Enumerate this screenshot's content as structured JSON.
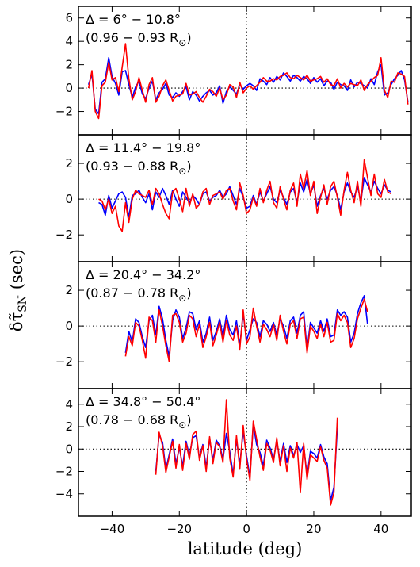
{
  "figure": {
    "xlabel": "latitude (deg)",
    "ylabel": "δτ̃",
    "ylabel_sub": "SN",
    "ylabel_unit": " (sec)"
  },
  "colors": {
    "series_a": "#0000ff",
    "series_b": "#ff0000",
    "axes": "#000000"
  },
  "chart_data": [
    {
      "type": "line",
      "label_line1": "Δ = 6° − 10.8°",
      "label_line2": "(0.96 − 0.93 R",
      "label_sub": "⊙",
      "label_close": ")",
      "xlim": [
        -50,
        49
      ],
      "ylim": [
        -4,
        7
      ],
      "xticks": [
        -40,
        -20,
        0,
        20,
        40
      ],
      "yticks": [
        -2,
        0,
        2,
        4,
        6
      ],
      "ytick_labels": [
        "−2",
        "0",
        "2",
        "4",
        "6"
      ],
      "reference_lines": {
        "y": 0,
        "x": 0,
        "style": "dotted"
      },
      "x_range": [
        -47,
        48
      ],
      "x_step": 1,
      "series": [
        {
          "color": "#0000ff",
          "values": [
            0.3,
            1.2,
            -1.8,
            -2.2,
            0.5,
            0.8,
            2.6,
            1.0,
            0.4,
            -0.6,
            1.4,
            1.5,
            0.3,
            -0.8,
            0.1,
            0.6,
            -0.5,
            -0.9,
            0.0,
            0.6,
            -1.0,
            -0.4,
            -0.1,
            0.4,
            -0.6,
            -0.8,
            -0.4,
            -0.7,
            -0.3,
            0.1,
            -1.0,
            -0.3,
            -0.6,
            -1.1,
            -0.7,
            -0.4,
            -0.2,
            -0.6,
            -0.4,
            0.2,
            -1.3,
            -0.3,
            0.1,
            -0.2,
            -0.5,
            0.3,
            -0.1,
            0.2,
            0.4,
            0.2,
            -0.2,
            0.8,
            0.6,
            0.3,
            0.9,
            0.5,
            1.0,
            0.7,
            1.3,
            1.0,
            0.6,
            1.1,
            0.9,
            0.6,
            1.0,
            0.8,
            0.4,
            0.9,
            0.5,
            0.8,
            0.2,
            0.6,
            0.5,
            -0.1,
            0.5,
            0.3,
            0.2,
            -0.2,
            0.7,
            0.1,
            0.5,
            0.4,
            0.2,
            0.0,
            0.8,
            0.3,
            1.4,
            2.0,
            -0.6,
            -0.4,
            0.3,
            0.8,
            1.1,
            1.5,
            0.7,
            -1.2
          ]
        },
        {
          "color": "#ff0000",
          "values": [
            0.0,
            1.5,
            -2.0,
            -2.6,
            0.2,
            0.5,
            2.2,
            0.7,
            0.9,
            -0.3,
            1.8,
            3.8,
            0.8,
            -1.0,
            -0.3,
            0.9,
            -0.2,
            -1.2,
            0.3,
            0.9,
            -1.2,
            -0.7,
            0.2,
            0.7,
            -0.2,
            -1.1,
            -0.7,
            -0.6,
            -0.5,
            0.4,
            -0.6,
            -0.5,
            -0.3,
            -0.8,
            -1.2,
            -0.7,
            -0.1,
            -0.3,
            -0.7,
            0.0,
            -1.0,
            -0.6,
            0.3,
            0.1,
            -0.8,
            0.5,
            -0.4,
            0.0,
            0.2,
            -0.1,
            0.2,
            0.5,
            0.9,
            0.6,
            0.6,
            0.8,
            0.7,
            1.0,
            1.1,
            1.3,
            0.9,
            0.8,
            1.1,
            0.9,
            0.7,
            1.1,
            0.6,
            0.7,
            0.8,
            1.0,
            0.5,
            0.8,
            0.3,
            0.2,
            0.8,
            0.0,
            0.4,
            0.1,
            0.4,
            0.3,
            0.2,
            0.7,
            -0.2,
            0.3,
            0.6,
            0.9,
            1.1,
            2.6,
            -0.2,
            -0.8,
            0.6,
            0.5,
            1.3,
            1.2,
            1.0,
            -1.4
          ]
        }
      ]
    },
    {
      "type": "line",
      "label_line1": "Δ = 11.4° − 19.8°",
      "label_line2": "(0.93 − 0.88 R",
      "label_sub": "⊙",
      "label_close": ")",
      "xlim": [
        -50,
        49
      ],
      "ylim": [
        -3.5,
        3.6
      ],
      "xticks": [
        -40,
        -20,
        0,
        20,
        40
      ],
      "yticks": [
        -2,
        0,
        2
      ],
      "ytick_labels": [
        "−2",
        "0",
        "2"
      ],
      "reference_lines": {
        "y": 0,
        "x": 0,
        "style": "dotted"
      },
      "x_range": [
        -44,
        43
      ],
      "x_step": 1,
      "series": [
        {
          "color": "#0000ff",
          "values": [
            -0.2,
            -0.3,
            -0.9,
            0.2,
            -0.5,
            -0.1,
            0.3,
            0.4,
            0.1,
            -1.0,
            0.2,
            0.3,
            0.5,
            0.1,
            -0.2,
            0.3,
            -0.6,
            0.4,
            0.1,
            0.6,
            0.2,
            -0.3,
            0.5,
            0.0,
            -0.4,
            0.4,
            0.1,
            -0.2,
            0.2,
            0.0,
            -0.3,
            0.3,
            0.4,
            -0.1,
            0.1,
            0.2,
            0.5,
            0.1,
            0.3,
            0.7,
            0.2,
            -0.3,
            0.6,
            0.1,
            -0.5,
            -0.4,
            0.2,
            -0.3,
            0.4,
            -0.1,
            0.3,
            0.7,
            0.0,
            -0.2,
            0.5,
            0.1,
            -0.3,
            0.4,
            0.6,
            -0.2,
            0.9,
            0.4,
            1.1,
            0.3,
            0.8,
            -0.4,
            0.2,
            0.6,
            0.0,
            0.5,
            0.7,
            0.2,
            -0.6,
            0.4,
            0.9,
            0.4,
            0.1,
            0.7,
            -0.1,
            1.2,
            0.8,
            0.4,
            1.0,
            0.6,
            0.3,
            0.8,
            0.5,
            0.4
          ]
        },
        {
          "color": "#ff0000",
          "values": [
            0.0,
            -0.1,
            -0.6,
            0.0,
            -0.8,
            -0.4,
            -1.5,
            -1.8,
            -0.2,
            -1.3,
            0.0,
            0.5,
            0.3,
            0.2,
            0.1,
            0.5,
            -0.3,
            0.6,
            0.3,
            -0.3,
            -0.8,
            -1.1,
            0.4,
            0.6,
            0.0,
            -0.7,
            0.6,
            -0.4,
            0.3,
            -0.5,
            -0.3,
            0.4,
            0.6,
            -0.3,
            0.2,
            0.3,
            0.4,
            0.0,
            0.5,
            0.6,
            -0.1,
            -0.6,
            0.9,
            0.2,
            -0.8,
            -0.6,
            0.1,
            -0.4,
            0.6,
            -0.2,
            0.5,
            1.0,
            -0.2,
            -0.5,
            0.7,
            0.0,
            -0.6,
            0.5,
            0.9,
            -0.4,
            1.4,
            0.6,
            1.6,
            0.2,
            1.0,
            -0.8,
            0.1,
            0.8,
            -0.3,
            0.7,
            1.0,
            0.1,
            -0.9,
            0.5,
            1.5,
            0.5,
            -0.2,
            1.0,
            -0.4,
            2.2,
            1.2,
            0.2,
            1.4,
            0.3,
            0.1,
            1.1,
            0.4,
            0.3
          ]
        }
      ]
    },
    {
      "type": "line",
      "label_line1": "Δ = 20.4° − 34.2°",
      "label_line2": "(0.87 − 0.78 R",
      "label_sub": "⊙",
      "label_close": ")",
      "xlim": [
        -50,
        49
      ],
      "ylim": [
        -3.5,
        3.6
      ],
      "xticks": [
        -40,
        -20,
        0,
        20,
        40
      ],
      "yticks": [
        -2,
        0,
        2
      ],
      "ytick_labels": [
        "−2",
        "0",
        "2"
      ],
      "reference_lines": {
        "y": 0,
        "x": 0,
        "style": "dotted"
      },
      "x_range": [
        -36,
        36
      ],
      "x_step": 1,
      "series": [
        {
          "color": "#0000ff",
          "values": [
            -1.5,
            -0.3,
            -0.9,
            0.4,
            0.2,
            -0.6,
            -1.2,
            0.3,
            0.6,
            -0.5,
            1.1,
            0.4,
            -0.8,
            -1.7,
            0.3,
            0.9,
            0.5,
            -0.7,
            -0.1,
            0.8,
            0.7,
            -0.2,
            0.3,
            -0.9,
            -0.4,
            0.5,
            -0.8,
            -0.3,
            0.4,
            -0.6,
            0.6,
            -0.2,
            -0.5,
            0.3,
            -1.1,
            0.7,
            -0.8,
            -0.2,
            0.4,
            0.2,
            -0.6,
            0.3,
            0.1,
            -0.3,
            0.2,
            -0.5,
            0.4,
            0.0,
            -0.7,
            0.3,
            0.5,
            -0.4,
            0.6,
            0.8,
            -1.3,
            0.2,
            -0.1,
            -0.4,
            0.3,
            -0.3,
            0.4,
            -0.6,
            -0.5,
            0.9,
            0.6,
            0.8,
            0.5,
            -0.9,
            -0.4,
            0.7,
            1.3,
            1.7,
            0.1
          ]
        },
        {
          "color": "#ff0000",
          "values": [
            -1.7,
            -0.6,
            -1.1,
            0.2,
            0.0,
            -0.8,
            -1.8,
            0.5,
            0.3,
            -0.9,
            0.9,
            0.0,
            -1.1,
            -2.0,
            0.6,
            0.7,
            0.2,
            -0.9,
            -0.4,
            0.6,
            0.4,
            -0.6,
            0.1,
            -1.2,
            -0.6,
            0.2,
            -1.1,
            -0.5,
            0.2,
            -0.9,
            0.3,
            -0.5,
            -0.8,
            0.0,
            -1.3,
            0.9,
            -1.0,
            -0.6,
            1.0,
            0.0,
            -0.9,
            0.1,
            -0.2,
            -0.6,
            0.1,
            -0.8,
            0.6,
            -0.3,
            -1.0,
            0.1,
            0.3,
            -0.7,
            0.4,
            0.5,
            -1.5,
            0.0,
            -0.3,
            -0.7,
            0.1,
            -0.6,
            0.2,
            -0.9,
            -0.8,
            0.7,
            0.3,
            0.6,
            0.2,
            -1.2,
            -0.7,
            0.4,
            1.0,
            1.5,
            0.8
          ]
        }
      ]
    },
    {
      "type": "line",
      "label_line1": "Δ = 34.8° − 50.4°",
      "label_line2": "(0.78 − 0.68 R",
      "label_sub": "⊙",
      "label_close": ")",
      "xlim": [
        -50,
        49
      ],
      "ylim": [
        -6,
        5.4
      ],
      "xticks": [
        -40,
        -20,
        0,
        20,
        40
      ],
      "yticks": [
        -4,
        -2,
        0,
        2,
        4
      ],
      "ytick_labels": [
        "−4",
        "−2",
        "0",
        "2",
        "4"
      ],
      "reference_lines": {
        "y": 0,
        "x": 0,
        "style": "dotted"
      },
      "x_range": [
        -27,
        27
      ],
      "x_step": 1,
      "series": [
        {
          "color": "#0000ff",
          "values": [
            -2.0,
            1.3,
            0.6,
            -1.8,
            -0.5,
            0.9,
            -1.3,
            0.1,
            -1.5,
            0.7,
            -0.6,
            1.0,
            1.2,
            -0.8,
            0.4,
            -1.6,
            0.9,
            -1.0,
            0.8,
            0.3,
            -0.9,
            1.4,
            -0.2,
            -2.3,
            0.9,
            -1.4,
            1.6,
            -0.6,
            -2.5,
            2.2,
            0.4,
            -0.3,
            -1.5,
            0.8,
            0.1,
            -0.9,
            0.7,
            -1.1,
            0.5,
            -1.2,
            0.3,
            -0.6,
            0.4,
            -0.3,
            0.3,
            -2.4,
            -0.2,
            -0.4,
            -0.8,
            0.4,
            -0.7,
            -1.3,
            -4.6,
            -3.4,
            1.9
          ]
        },
        {
          "color": "#ff0000",
          "values": [
            -2.3,
            1.5,
            0.3,
            -2.1,
            -0.7,
            0.7,
            -1.7,
            0.4,
            -1.9,
            0.5,
            -0.9,
            1.3,
            1.6,
            -1.0,
            0.3,
            -2.0,
            1.1,
            -1.3,
            0.6,
            0.2,
            -1.2,
            4.4,
            -0.8,
            -2.5,
            1.2,
            -1.8,
            2.1,
            -0.9,
            -2.8,
            2.5,
            0.9,
            -0.7,
            -1.9,
            0.5,
            -0.1,
            -1.2,
            1.0,
            -1.5,
            0.3,
            -2.0,
            0.1,
            -0.8,
            0.6,
            -3.9,
            0.5,
            -2.7,
            -0.5,
            -0.8,
            -1.1,
            0.2,
            -1.0,
            -1.7,
            -5.0,
            -3.9,
            2.8
          ]
        }
      ]
    }
  ]
}
